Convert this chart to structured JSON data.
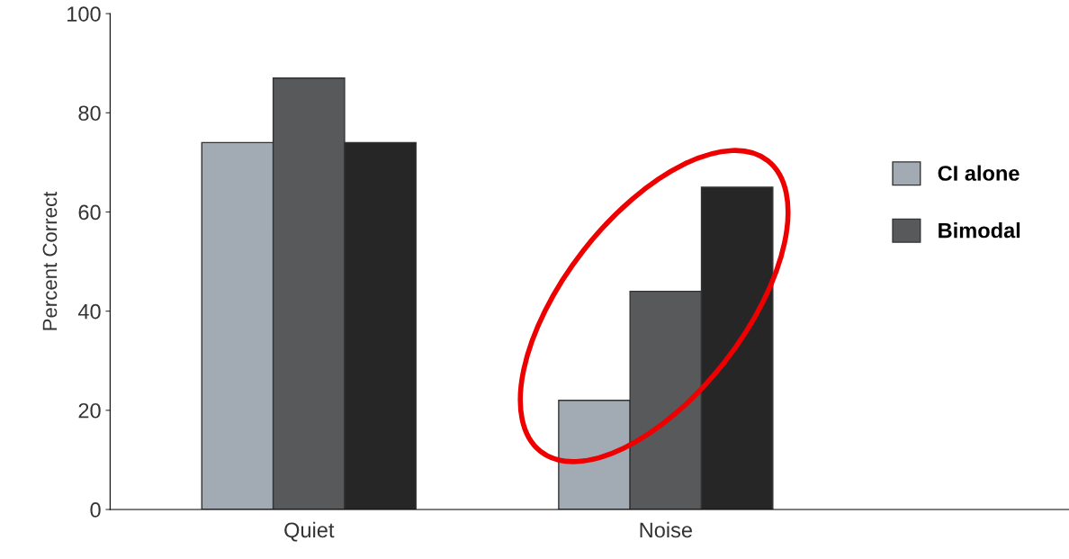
{
  "chart_data": {
    "type": "bar",
    "ylabel": "Percent Correct",
    "categories": [
      "Quiet",
      "Noise"
    ],
    "series": [
      {
        "name": "CI alone",
        "color": "#a2abb3",
        "values": [
          74,
          22
        ]
      },
      {
        "name": "Bimodal",
        "color": "#58595b",
        "values": [
          87,
          44
        ]
      },
      {
        "color": "#262626",
        "values": [
          74,
          65
        ]
      }
    ],
    "ylim": [
      0,
      100
    ],
    "yticks": [
      0,
      20,
      40,
      60,
      80,
      100
    ],
    "grid": false,
    "legend": "right"
  }
}
